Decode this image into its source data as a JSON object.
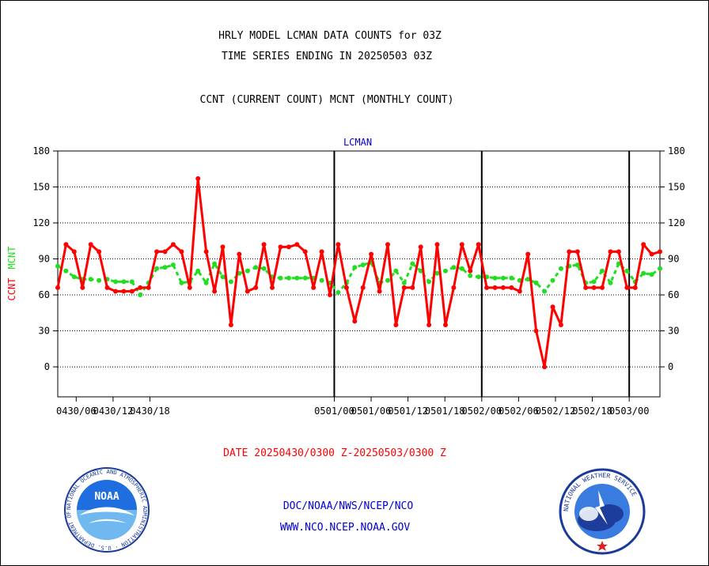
{
  "header": {
    "title_line1": "HRLY MODEL LCMAN DATA COUNTS for 03Z",
    "title_line2": "TIME SERIES ENDING IN 20250503 03Z",
    "subtitle": "CCNT (CURRENT COUNT) MCNT (MONTHLY COUNT)"
  },
  "footer": {
    "date_range": "DATE 20250430/0300 Z-20250503/0300 Z",
    "org": "DOC/NOAA/NWS/NCEP/NCO",
    "url": "WWW.NCO.NCEP.NOAA.GOV",
    "noaa_logo_text": "NOAA",
    "noaa_seal_text": "NATIONAL OCEANIC AND ATMOSPHERIC ADMINISTRATION · U.S. DEPARTMENT OF COMMERCE",
    "nws_seal_text": "NATIONAL WEATHER SERVICE"
  },
  "colors": {
    "ccnt": "#ff0000",
    "mcnt": "#22dd22",
    "title": "#000000",
    "footer_blue": "#0000cc",
    "date_red": "#ff0000"
  },
  "chart_data": {
    "type": "line",
    "title": "LCMAN",
    "ylabel_left": [
      "CCNT",
      "MCNT"
    ],
    "ylim": [
      -25,
      180
    ],
    "yticks": [
      0,
      30,
      60,
      90,
      120,
      150,
      180
    ],
    "grid": true,
    "x_tick_labels": [
      "0430/06",
      "0430/12",
      "0430/18",
      "0501/00",
      "0501/06",
      "0501/12",
      "0501/18",
      "0502/00",
      "0502/06",
      "0502/12",
      "0502/18",
      "0503/00"
    ],
    "day_boundaries": [
      "0501/00",
      "0502/00",
      "0503/00"
    ],
    "x_start": "0430/03",
    "x_end": "0503/05",
    "series": [
      {
        "name": "CCNT",
        "values": [
          66,
          102,
          96,
          66,
          102,
          96,
          66,
          63,
          63,
          63,
          66,
          66,
          96,
          96,
          102,
          96,
          66,
          157,
          96,
          63,
          100,
          35,
          94,
          63,
          66,
          102,
          66,
          100,
          100,
          102,
          96,
          66,
          96,
          60,
          102,
          66,
          38,
          66,
          94,
          63,
          102,
          35,
          66,
          66,
          100,
          35,
          102,
          35,
          66,
          102,
          80,
          102,
          66,
          66,
          66,
          66,
          63,
          94,
          30,
          0,
          50,
          35,
          96,
          96,
          66,
          66,
          66,
          96,
          96,
          66,
          66,
          102,
          94,
          96
        ]
      },
      {
        "name": "MCNT",
        "values": [
          84,
          80,
          75,
          73,
          73,
          72,
          73,
          71,
          71,
          71,
          60,
          70,
          82,
          83,
          85,
          70,
          71,
          80,
          70,
          86,
          75,
          71,
          78,
          80,
          83,
          82,
          75,
          74,
          74,
          74,
          74,
          74,
          72,
          70,
          62,
          70,
          83,
          85,
          87,
          70,
          72,
          80,
          70,
          86,
          80,
          71,
          78,
          80,
          83,
          82,
          76,
          75,
          75,
          74,
          74,
          74,
          72,
          73,
          70,
          63,
          72,
          82,
          84,
          85,
          70,
          71,
          80,
          70,
          86,
          80,
          71,
          78,
          77,
          82
        ]
      }
    ]
  }
}
